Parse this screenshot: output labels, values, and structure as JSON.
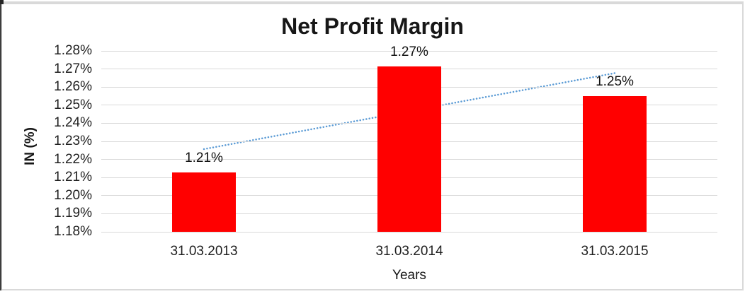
{
  "chart_data": {
    "type": "bar",
    "title": "Net Profit Margin",
    "xlabel": "Years",
    "ylabel": "IN (%)",
    "categories": [
      "31.03.2013",
      "31.03.2014",
      "31.03.2015"
    ],
    "values": [
      1.213,
      1.2715,
      1.255
    ],
    "data_labels": [
      "1.21%",
      "1.27%",
      "1.25%"
    ],
    "ylim": [
      1.18,
      1.28
    ],
    "ytick_step": 0.01,
    "ytick_labels": [
      "1.28%",
      "1.27%",
      "1.26%",
      "1.25%",
      "1.24%",
      "1.23%",
      "1.22%",
      "1.21%",
      "1.20%",
      "1.19%",
      "1.18%"
    ],
    "grid": true,
    "legend": false,
    "bar_color": "#ff0000",
    "gridline_color": "#d9d9d9",
    "label_color": "#1f1f1f",
    "trendline": {
      "type": "linear",
      "style": "dotted",
      "color": "#5b9bd5",
      "start_value": 1.2257,
      "end_value": 1.2677
    }
  }
}
